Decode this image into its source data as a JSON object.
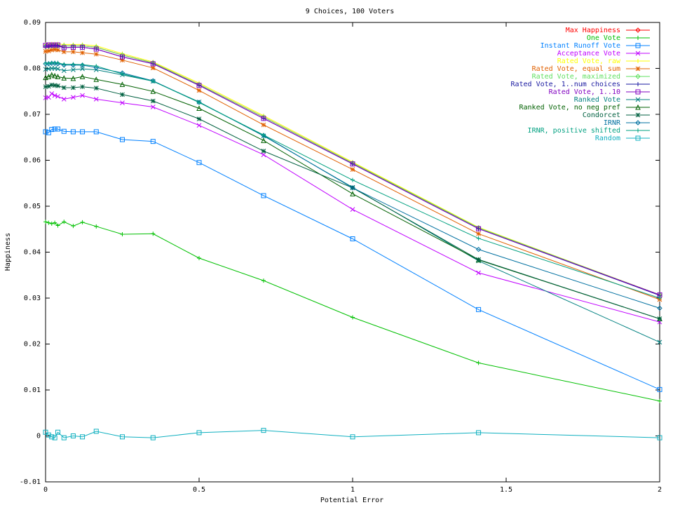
{
  "chart_data": {
    "type": "line",
    "title": "9 Choices, 100 Voters",
    "xlabel": "Potential Error",
    "ylabel": "Happiness",
    "xlim": [
      0,
      2
    ],
    "ylim": [
      -0.01,
      0.09
    ],
    "x_ticks": [
      "0",
      "0.5",
      "1",
      "1.5",
      "2"
    ],
    "y_ticks": [
      "-0.01",
      "0",
      "0.01",
      "0.02",
      "0.03",
      "0.04",
      "0.05",
      "0.06",
      "0.07",
      "0.08",
      "0.09"
    ],
    "grid": false,
    "legend_position": "top-right",
    "x": [
      0,
      0.01,
      0.02,
      0.03,
      0.04,
      0.06,
      0.09,
      0.12,
      0.165,
      0.25,
      0.35,
      0.5,
      0.71,
      1.0,
      1.41,
      2.0
    ],
    "series": [
      {
        "name": "Max Happiness",
        "color": "#ff0000",
        "marker": "diamond",
        "values": [
          0.0848,
          0.0848,
          0.0849,
          0.0849,
          0.0849,
          0.0849,
          0.0849,
          0.0849,
          0.0846,
          0.0829,
          0.0812,
          0.0765,
          0.0694,
          0.0594,
          0.0453,
          0.0307
        ]
      },
      {
        "name": "One Vote",
        "color": "#00c000",
        "marker": "plus",
        "values": [
          0.0466,
          0.0464,
          0.0462,
          0.0464,
          0.0458,
          0.0466,
          0.0457,
          0.0465,
          0.0456,
          0.0439,
          0.044,
          0.0387,
          0.0338,
          0.0258,
          0.0159,
          0.0076
        ]
      },
      {
        "name": "Instant Runoff Vote",
        "color": "#0080ff",
        "marker": "square",
        "values": [
          0.0662,
          0.066,
          0.0667,
          0.0668,
          0.0668,
          0.0663,
          0.0662,
          0.0662,
          0.0662,
          0.0645,
          0.0641,
          0.0595,
          0.0523,
          0.0429,
          0.0275,
          0.0101
        ]
      },
      {
        "name": "Acceptance Vote",
        "color": "#c000ff",
        "marker": "x",
        "values": [
          0.0736,
          0.0737,
          0.0745,
          0.0741,
          0.0739,
          0.0733,
          0.0737,
          0.0741,
          0.0733,
          0.0725,
          0.0716,
          0.0676,
          0.0612,
          0.0493,
          0.0355,
          0.0248
        ]
      },
      {
        "name": "Rated Vote, raw",
        "color": "#ffff00",
        "marker": "plus",
        "values": [
          0.0852,
          0.0852,
          0.0853,
          0.0853,
          0.0853,
          0.0852,
          0.0852,
          0.0852,
          0.0849,
          0.0832,
          0.0814,
          0.0768,
          0.0697,
          0.0596,
          0.0454,
          0.0307
        ]
      },
      {
        "name": "Rated Vote, equal sum",
        "color": "#e06000",
        "marker": "star",
        "values": [
          0.0837,
          0.0838,
          0.084,
          0.0841,
          0.084,
          0.0836,
          0.0836,
          0.0834,
          0.0831,
          0.0818,
          0.0801,
          0.0752,
          0.0677,
          0.058,
          0.044,
          0.0297
        ]
      },
      {
        "name": "Rated Vote, maximized",
        "color": "#60e060",
        "marker": "diamond",
        "values": [
          0.0848,
          0.0848,
          0.0849,
          0.0849,
          0.0849,
          0.0849,
          0.0849,
          0.0849,
          0.0846,
          0.0829,
          0.0812,
          0.0765,
          0.0694,
          0.0594,
          0.0453,
          0.0307
        ]
      },
      {
        "name": "Rated Vote, 1..num choices",
        "color": "#1a1aa0",
        "marker": "plus",
        "values": [
          0.0848,
          0.0848,
          0.0849,
          0.0849,
          0.0849,
          0.0845,
          0.0846,
          0.0846,
          0.0842,
          0.0825,
          0.081,
          0.0763,
          0.0691,
          0.0592,
          0.0451,
          0.0306
        ]
      },
      {
        "name": "Rated Vote, 1..10",
        "color": "#8000c0",
        "marker": "square",
        "values": [
          0.085,
          0.0851,
          0.0851,
          0.0851,
          0.0851,
          0.0845,
          0.0846,
          0.0846,
          0.0842,
          0.0825,
          0.081,
          0.0763,
          0.0691,
          0.0592,
          0.0451,
          0.0307
        ]
      },
      {
        "name": "Ranked Vote",
        "color": "#008080",
        "marker": "x",
        "values": [
          0.0798,
          0.0799,
          0.08,
          0.08,
          0.0799,
          0.0795,
          0.0797,
          0.0799,
          0.0797,
          0.0786,
          0.0772,
          0.0727,
          0.0653,
          0.0541,
          0.0381,
          0.0204
        ]
      },
      {
        "name": "Ranked Vote, no neg pref",
        "color": "#006000",
        "marker": "triangle",
        "values": [
          0.078,
          0.0782,
          0.0786,
          0.0784,
          0.0782,
          0.0779,
          0.0778,
          0.0782,
          0.0776,
          0.0765,
          0.075,
          0.0713,
          0.0643,
          0.0527,
          0.0383,
          0.0255
        ]
      },
      {
        "name": "Condorcet",
        "color": "#006040",
        "marker": "star",
        "values": [
          0.076,
          0.0761,
          0.0764,
          0.0763,
          0.0762,
          0.0758,
          0.0758,
          0.076,
          0.0757,
          0.0743,
          0.0729,
          0.069,
          0.062,
          0.054,
          0.0384,
          0.0255
        ]
      },
      {
        "name": "IRNR",
        "color": "#0070a0",
        "marker": "diamond",
        "values": [
          0.081,
          0.081,
          0.0811,
          0.0811,
          0.081,
          0.0807,
          0.0807,
          0.0807,
          0.0802,
          0.079,
          0.0773,
          0.0726,
          0.0654,
          0.054,
          0.0406,
          0.0278
        ]
      },
      {
        "name": "IRNR, positive shifted",
        "color": "#00a080",
        "marker": "plus",
        "values": [
          0.0811,
          0.0811,
          0.0812,
          0.0812,
          0.0812,
          0.0809,
          0.0809,
          0.0808,
          0.0805,
          0.0788,
          0.0772,
          0.0726,
          0.0655,
          0.0557,
          0.043,
          0.03
        ]
      },
      {
        "name": "Random",
        "color": "#10b0c0",
        "marker": "square",
        "values": [
          0.0008,
          0.0002,
          -0.0002,
          -0.0004,
          0.0008,
          -0.0004,
          0.0,
          -0.0002,
          0.001,
          -0.0002,
          -0.0004,
          0.0007,
          0.0012,
          -0.0002,
          0.0007,
          -0.0004
        ]
      }
    ]
  }
}
